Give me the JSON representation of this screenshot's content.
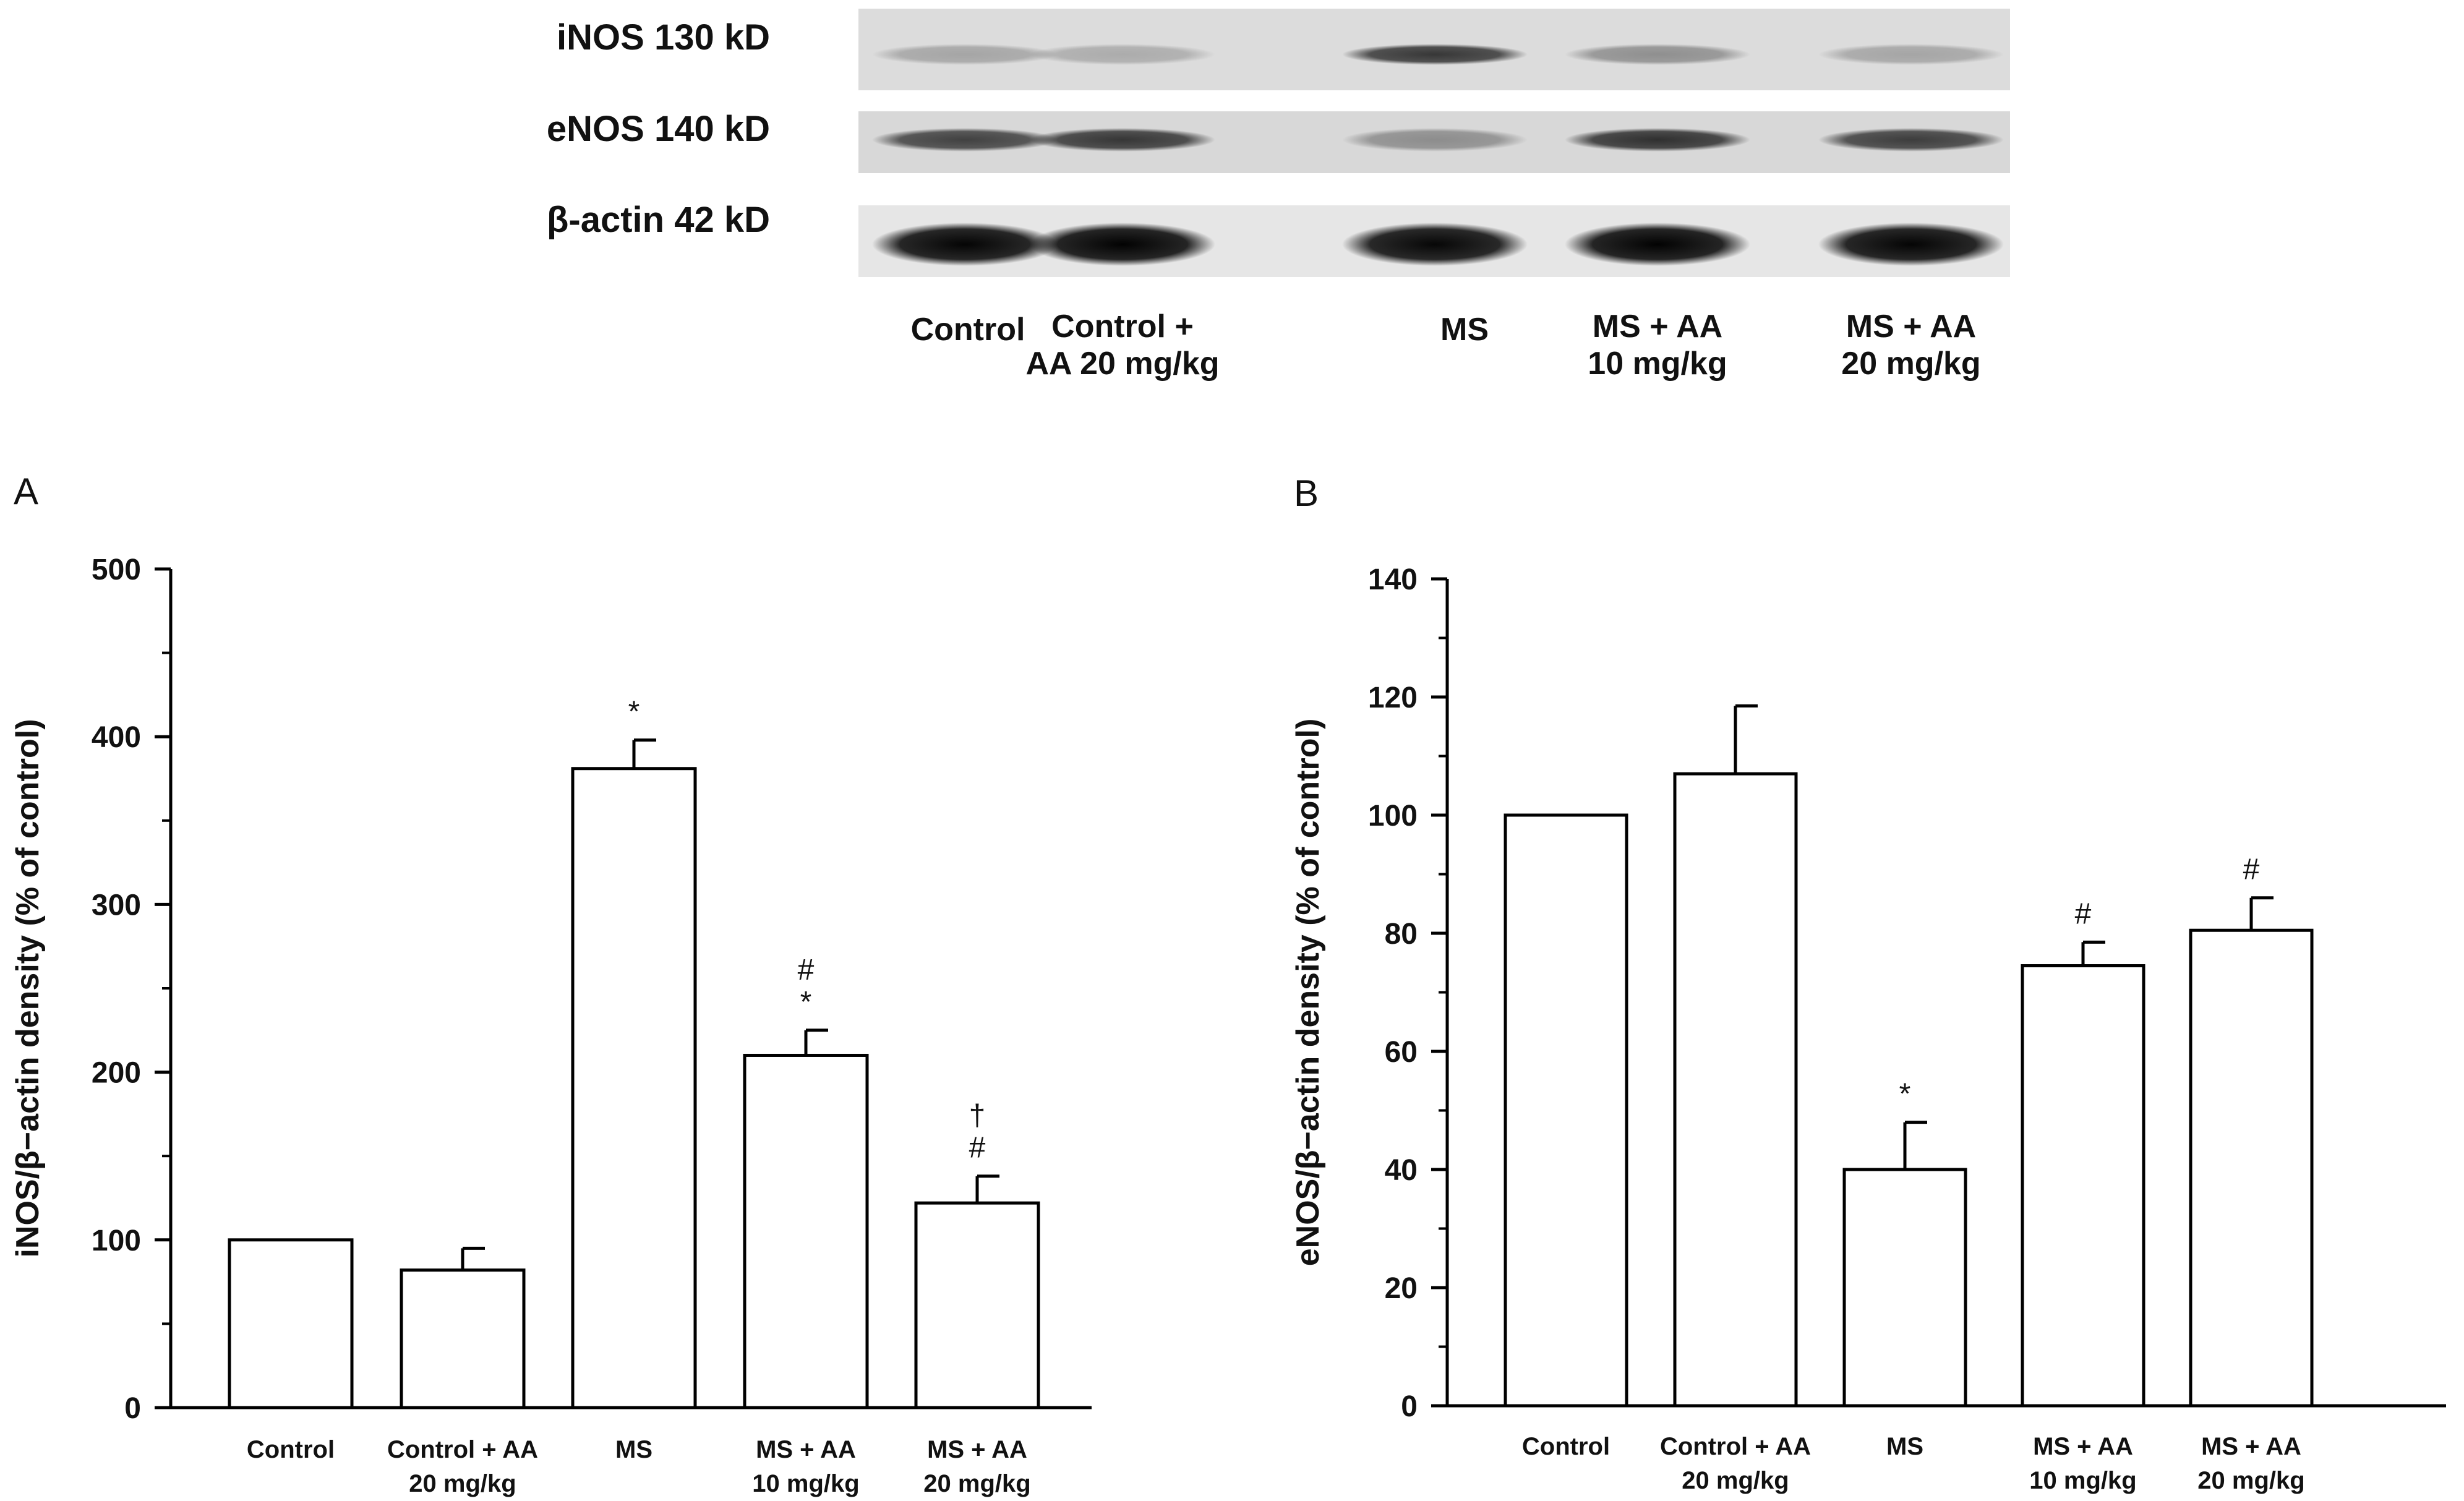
{
  "blot": {
    "rows": [
      {
        "label": "iNOS 130 kD",
        "intensity": [
          0.25,
          0.22,
          0.75,
          0.35,
          0.25
        ]
      },
      {
        "label": "eNOS 140 kD",
        "intensity": [
          0.7,
          0.75,
          0.35,
          0.78,
          0.72
        ]
      },
      {
        "label": "β-actin 42 kD",
        "intensity": [
          0.98,
          0.99,
          0.97,
          0.99,
          0.98
        ]
      }
    ],
    "lanes": [
      [
        "Control"
      ],
      [
        "Control +",
        "AA 20 mg/kg"
      ],
      [
        "MS"
      ],
      [
        "MS + AA",
        "10 mg/kg"
      ],
      [
        "MS + AA",
        "20 mg/kg"
      ]
    ]
  },
  "chart_data": [
    {
      "panel": "A",
      "type": "bar",
      "categories": [
        [
          "Control"
        ],
        [
          "Control + AA",
          "20 mg/kg"
        ],
        [
          "MS"
        ],
        [
          "MS + AA",
          "10 mg/kg"
        ],
        [
          "MS + AA",
          "20 mg/kg"
        ]
      ],
      "values": [
        100,
        82,
        381,
        210,
        122
      ],
      "errors": [
        0,
        13,
        17,
        15,
        16
      ],
      "annotations": [
        [],
        [],
        [
          "*"
        ],
        [
          "#",
          "*"
        ],
        [
          "†",
          "#"
        ]
      ],
      "ylabel": "iNOS/β−actin density (% of control)",
      "ylim": [
        0,
        500
      ],
      "yticks": [
        0,
        100,
        200,
        300,
        400,
        500
      ]
    },
    {
      "panel": "B",
      "type": "bar",
      "categories": [
        [
          "Control"
        ],
        [
          "Control + AA",
          "20 mg/kg"
        ],
        [
          "MS"
        ],
        [
          "MS + AA",
          "10 mg/kg"
        ],
        [
          "MS + AA",
          "20 mg/kg"
        ]
      ],
      "values": [
        100,
        107,
        40,
        74.5,
        80.5
      ],
      "errors": [
        0,
        11.5,
        8,
        4,
        5.5
      ],
      "annotations": [
        [],
        [],
        [
          "*"
        ],
        [
          "#"
        ],
        [
          "#"
        ]
      ],
      "ylabel": "eNOS/β−actin density (% of control)",
      "ylim": [
        0,
        140
      ],
      "yticks": [
        0,
        20,
        40,
        60,
        80,
        100,
        120,
        140
      ]
    }
  ]
}
